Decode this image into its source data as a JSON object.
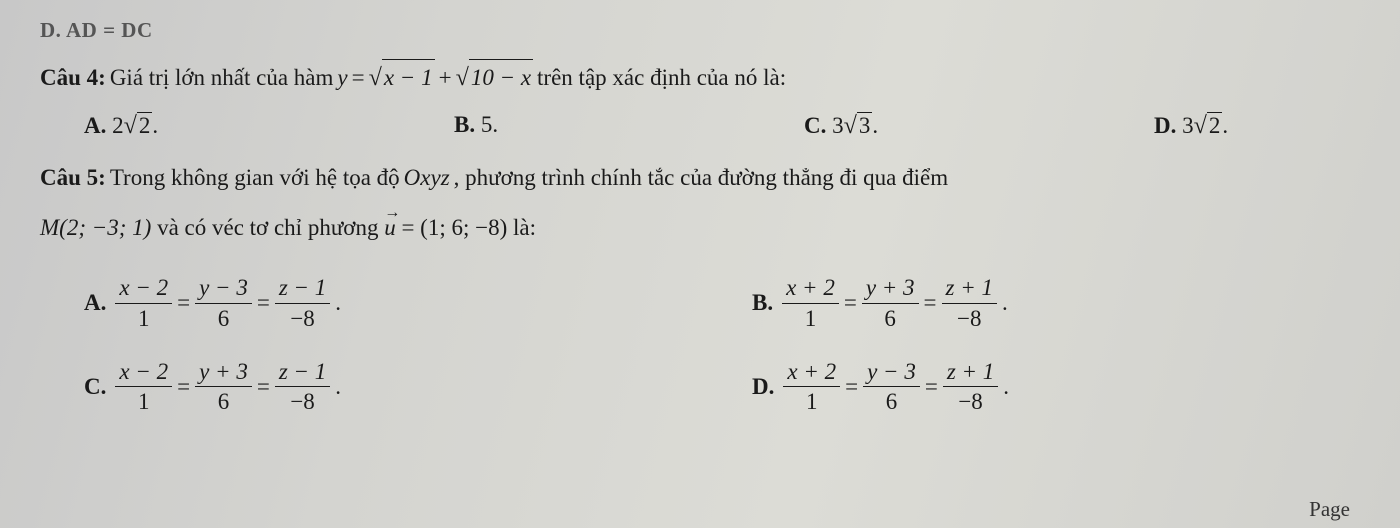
{
  "faded_top": "D. AD = DC",
  "q4": {
    "label": "Câu 4:",
    "text_before": " Giá trị lớn nhất của hàm ",
    "y_eq": "y",
    "equals": " = ",
    "sqrt1": "x − 1",
    "plus": " + ",
    "sqrt2": "10 − x",
    "text_after": " trên tập xác định của nó là:",
    "options": {
      "A": {
        "label": "A.",
        "prefix": "2",
        "sqrt": "2",
        "suffix": "."
      },
      "B": {
        "label": "B.",
        "value": "5."
      },
      "C": {
        "label": "C.",
        "prefix": "3",
        "sqrt": "3",
        "suffix": "."
      },
      "D": {
        "label": "D.",
        "prefix": "3",
        "sqrt": "2",
        "suffix": "."
      }
    }
  },
  "q5": {
    "label": "Câu 5:",
    "text_line1": " Trong không gian với hệ tọa độ ",
    "oxyz": "Oxyz",
    "text_line1b": " , phương trình chính tắc của đường thẳng đi qua điểm",
    "m_point": "M(2; −3; 1)",
    "text_line2a": " và có véc tơ chỉ phương ",
    "u_vec": "u",
    "u_val": " = (1; 6; −8)",
    "text_line2b": " là:",
    "options": {
      "A": {
        "label": "A.",
        "f1": {
          "num": "x − 2",
          "den": "1"
        },
        "f2": {
          "num": "y − 3",
          "den": "6"
        },
        "f3": {
          "num": "z − 1",
          "den": "−8"
        },
        "dot": "."
      },
      "B": {
        "label": "B.",
        "f1": {
          "num": "x + 2",
          "den": "1"
        },
        "f2": {
          "num": "y + 3",
          "den": "6"
        },
        "f3": {
          "num": "z + 1",
          "den": "−8"
        },
        "dot": "."
      },
      "C": {
        "label": "C.",
        "f1": {
          "num": "x − 2",
          "den": "1"
        },
        "f2": {
          "num": "y + 3",
          "den": "6"
        },
        "f3": {
          "num": "z − 1",
          "den": "−8"
        },
        "dot": "."
      },
      "D": {
        "label": "D.",
        "f1": {
          "num": "x + 2",
          "den": "1"
        },
        "f2": {
          "num": "y − 3",
          "den": "6"
        },
        "f3": {
          "num": "z + 1",
          "den": "−8"
        },
        "dot": "."
      }
    }
  },
  "eq_sign": " = ",
  "page_label": "Page"
}
